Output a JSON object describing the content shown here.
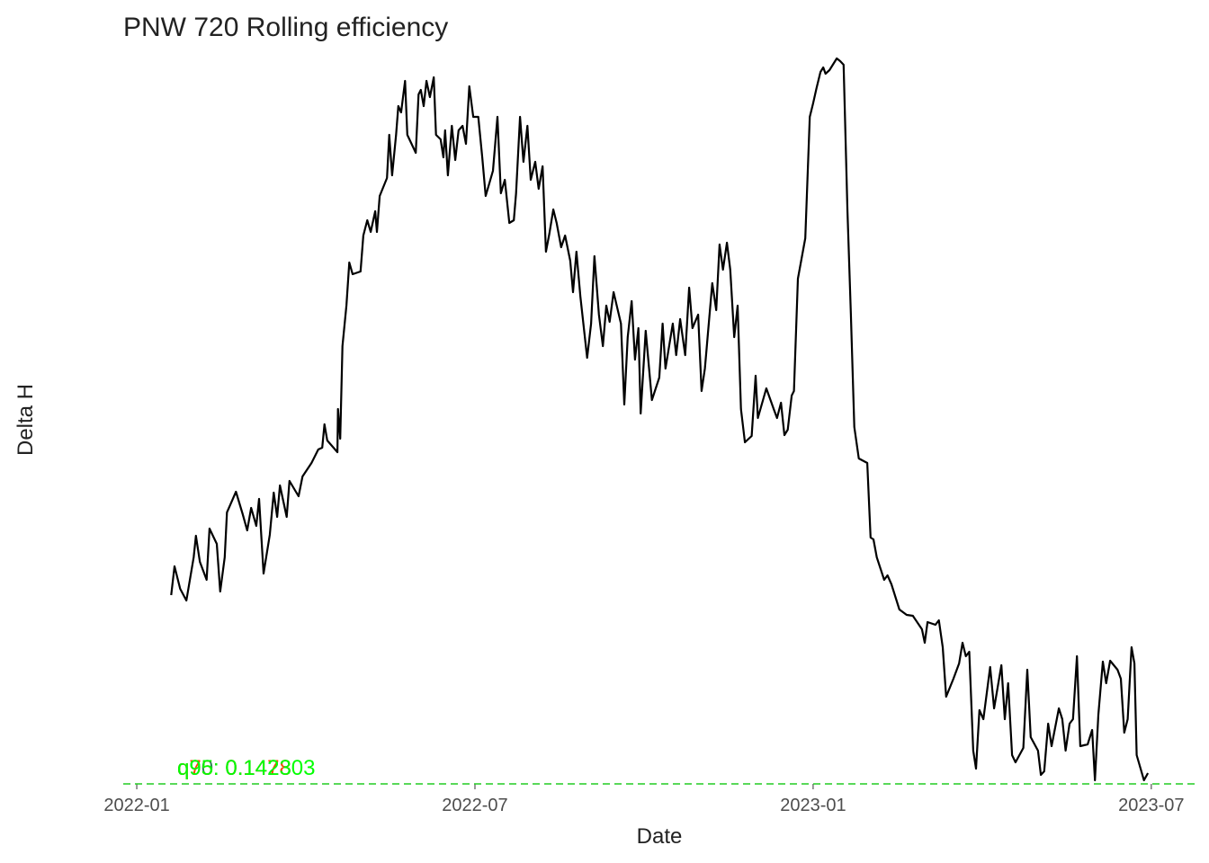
{
  "chart_data": {
    "type": "line",
    "title": "PNW 720 Rolling efficiency",
    "x_label": "Date",
    "y_label": "Delta H",
    "color": "#000000",
    "xlim": [
      -0.24,
      18.8
    ],
    "xticks": [
      {
        "value": 0,
        "label": "2022-01"
      },
      {
        "value": 6,
        "label": "2022-07"
      },
      {
        "value": 12,
        "label": "2023-01"
      },
      {
        "value": 18,
        "label": "2023-07"
      }
    ],
    "ylim": [
      0,
      81
    ],
    "hline": {
      "value": 0,
      "color": "#22cc22"
    },
    "annotations": [
      {
        "text": "q90: 0.1428",
        "color": "#2e8b57"
      },
      {
        "text": "q75: 0.1478",
        "color": "#ff4500"
      },
      {
        "text": "q95: 0.142303",
        "color": "#00ff00"
      }
    ],
    "x": [
      0.61,
      0.67,
      0.77,
      0.88,
      1.01,
      1.05,
      1.12,
      1.24,
      1.29,
      1.42,
      1.48,
      1.56,
      1.6,
      1.76,
      1.88,
      1.96,
      2.03,
      2.12,
      2.17,
      2.25,
      2.36,
      2.43,
      2.49,
      2.54,
      2.66,
      2.71,
      2.87,
      2.94,
      3.1,
      3.22,
      3.29,
      3.33,
      3.38,
      3.56,
      3.57,
      3.61,
      3.65,
      3.72,
      3.77,
      3.83,
      3.97,
      4.02,
      4.09,
      4.15,
      4.23,
      4.26,
      4.31,
      4.44,
      4.48,
      4.53,
      4.6,
      4.64,
      4.69,
      4.76,
      4.8,
      4.95,
      5.0,
      5.04,
      5.09,
      5.14,
      5.2,
      5.27,
      5.31,
      5.39,
      5.44,
      5.47,
      5.52,
      5.59,
      5.65,
      5.71,
      5.78,
      5.84,
      5.9,
      5.97,
      6.06,
      6.13,
      6.19,
      6.32,
      6.4,
      6.46,
      6.53,
      6.61,
      6.69,
      6.73,
      6.8,
      6.86,
      6.93,
      6.99,
      7.07,
      7.13,
      7.2,
      7.26,
      7.32,
      7.39,
      7.45,
      7.53,
      7.6,
      7.69,
      7.74,
      7.8,
      7.87,
      7.99,
      8.06,
      8.12,
      8.2,
      8.27,
      8.33,
      8.39,
      8.46,
      8.59,
      8.65,
      8.71,
      8.78,
      8.84,
      8.9,
      8.94,
      9.03,
      9.14,
      9.27,
      9.33,
      9.38,
      9.51,
      9.57,
      9.64,
      9.73,
      9.8,
      9.86,
      9.96,
      10.02,
      10.08,
      10.21,
      10.28,
      10.34,
      10.4,
      10.47,
      10.53,
      10.6,
      10.66,
      10.72,
      10.79,
      10.91,
      10.98,
      11.02,
      11.17,
      11.3,
      11.36,
      11.43,
      11.49,
      11.55,
      11.62,
      11.66,
      11.73,
      11.86,
      11.94,
      12.0,
      12.06,
      12.13,
      12.18,
      12.22,
      12.29,
      12.42,
      12.48,
      12.54,
      12.61,
      12.67,
      12.73,
      12.81,
      12.96,
      13.02,
      13.07,
      13.13,
      13.26,
      13.32,
      13.39,
      13.53,
      13.66,
      13.77,
      13.93,
      13.98,
      14.03,
      14.17,
      14.23,
      14.3,
      14.36,
      14.49,
      14.59,
      14.65,
      14.71,
      14.77,
      14.84,
      14.89,
      14.95,
      15.02,
      15.14,
      15.21,
      15.34,
      15.4,
      15.46,
      15.53,
      15.59,
      15.73,
      15.8,
      15.86,
      15.99,
      16.04,
      16.1,
      16.17,
      16.23,
      16.36,
      16.42,
      16.48,
      16.55,
      16.61,
      16.68,
      16.74,
      16.87,
      16.95,
      17.0,
      17.06,
      17.14,
      17.2,
      17.27,
      17.4,
      17.46,
      17.52,
      17.58,
      17.65,
      17.7,
      17.74,
      17.87,
      17.94
    ],
    "values": [
      21.0,
      24.2,
      21.7,
      20.4,
      25.2,
      27.6,
      24.7,
      22.7,
      28.4,
      26.7,
      21.4,
      25.2,
      30.2,
      32.5,
      30.0,
      28.2,
      30.7,
      28.7,
      31.7,
      23.4,
      27.7,
      32.4,
      29.7,
      33.2,
      29.7,
      33.7,
      32.0,
      34.2,
      35.7,
      37.2,
      37.4,
      40.0,
      38.2,
      36.9,
      41.7,
      38.4,
      48.7,
      53.2,
      58.0,
      56.7,
      57.0,
      61.0,
      62.7,
      61.4,
      63.7,
      61.4,
      65.4,
      67.4,
      72.2,
      67.7,
      72.2,
      75.4,
      74.7,
      78.2,
      72.2,
      70.2,
      76.7,
      77.2,
      75.4,
      78.2,
      76.4,
      78.6,
      72.2,
      71.7,
      69.7,
      72.7,
      67.7,
      73.2,
      69.4,
      72.7,
      73.2,
      71.2,
      77.6,
      74.2,
      74.2,
      69.7,
      65.4,
      68.2,
      74.2,
      65.7,
      67.2,
      62.4,
      62.7,
      65.7,
      74.2,
      69.2,
      73.2,
      67.2,
      69.2,
      66.2,
      68.7,
      59.2,
      61.2,
      63.9,
      62.4,
      59.7,
      61.0,
      58.2,
      54.7,
      59.2,
      54.2,
      47.4,
      51.2,
      58.7,
      52.2,
      48.7,
      53.2,
      51.4,
      54.7,
      51.2,
      42.2,
      49.7,
      53.7,
      47.2,
      50.7,
      41.2,
      50.4,
      42.7,
      45.2,
      51.2,
      46.2,
      51.2,
      47.7,
      51.7,
      47.7,
      55.2,
      50.7,
      52.2,
      43.7,
      46.2,
      55.7,
      52.7,
      60.0,
      57.2,
      60.2,
      57.2,
      49.7,
      53.2,
      41.7,
      38.0,
      38.7,
      45.4,
      40.7,
      44.0,
      41.7,
      40.7,
      42.4,
      38.8,
      39.4,
      43.2,
      43.7,
      56.2,
      60.7,
      74.2,
      75.7,
      77.4,
      79.2,
      79.7,
      79.0,
      79.4,
      80.7,
      80.4,
      80.0,
      63.7,
      52.2,
      39.7,
      36.2,
      35.7,
      27.4,
      27.2,
      25.2,
      22.7,
      23.2,
      22.2,
      19.4,
      18.8,
      18.7,
      17.2,
      15.7,
      18.0,
      17.7,
      18.2,
      15.2,
      9.7,
      11.7,
      13.4,
      15.7,
      14.2,
      14.7,
      3.7,
      1.7,
      8.2,
      7.2,
      13.0,
      8.4,
      13.2,
      7.2,
      11.2,
      3.2,
      2.4,
      4.0,
      12.7,
      5.2,
      3.7,
      1.0,
      1.4,
      6.7,
      4.2,
      8.4,
      7.2,
      3.7,
      6.7,
      7.2,
      14.2,
      4.2,
      4.4,
      6.0,
      0.4,
      7.7,
      13.6,
      11.2,
      13.7,
      12.7,
      11.7,
      5.7,
      7.2,
      15.2,
      13.4,
      3.2,
      0.4,
      1.2
    ]
  }
}
